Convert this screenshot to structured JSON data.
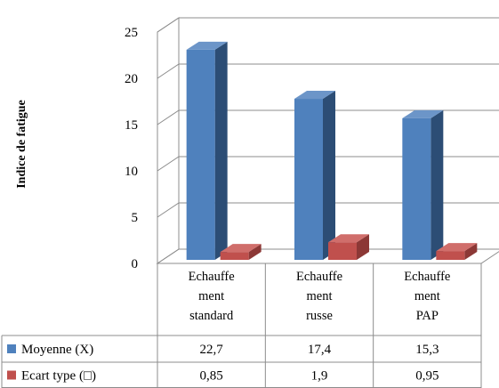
{
  "chart_data": {
    "type": "bar",
    "title": "",
    "ylabel": "Indice de fatigue",
    "xlabel": "",
    "ylim": [
      0,
      25
    ],
    "yticks": [
      0,
      5,
      10,
      15,
      20,
      25
    ],
    "grid": true,
    "legend": "data-table",
    "categories": [
      [
        "Echauffe",
        "ment",
        "standard"
      ],
      [
        "Echauffe",
        "ment",
        "russe"
      ],
      [
        "Echauffe",
        "ment",
        "PAP"
      ]
    ],
    "series": [
      {
        "name": "Moyenne (X)",
        "values": [
          22.7,
          17.4,
          15.3
        ],
        "labels": [
          "22,7",
          "17,4",
          "15,3"
        ],
        "color": "#4F81BD",
        "side_color": "#2C4D75",
        "top_color": "#6C95C8"
      },
      {
        "name": "Ecart type (□)",
        "values": [
          0.85,
          1.9,
          0.95
        ],
        "labels": [
          "0,85",
          "1,9",
          "0,95"
        ],
        "color": "#C0504D",
        "side_color": "#8C3836",
        "top_color": "#D06E6B"
      }
    ]
  }
}
